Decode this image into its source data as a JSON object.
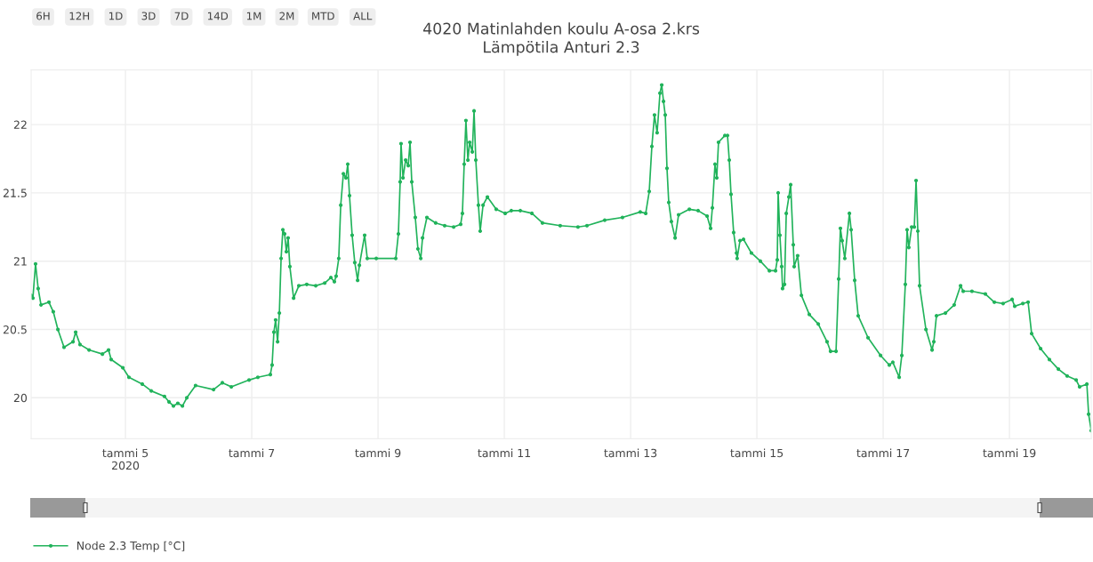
{
  "chart_data": {
    "type": "line",
    "title": "4020 Matinlahden koulu A-osa 2.krs",
    "subtitle": "Lämpötila Anturi 2.3",
    "annotations": [
      "6H",
      "12H",
      "1D",
      "3D",
      "7D",
      "14D",
      "1M",
      "2M",
      "MTD",
      "ALL"
    ],
    "x": [
      "2020-01-03T12:10",
      "2020-01-03T12:50",
      "2020-01-03T13:50",
      "2020-01-03T14:50",
      "2020-01-03T15:55",
      "2020-01-03T18:55",
      "2020-01-03T20:35",
      "2020-01-03T22:20",
      "2020-01-04T00:40",
      "2020-01-04T04:05",
      "2020-01-04T05:05",
      "2020-01-04T06:45",
      "2020-01-04T10:10",
      "2020-01-04T15:15",
      "2020-01-04T17:35",
      "2020-01-04T18:35",
      "2020-01-04T23:00",
      "2020-01-05T01:20",
      "2020-01-05T06:25",
      "2020-01-05T09:50",
      "2020-01-05T14:50",
      "2020-01-05T16:35",
      "2020-01-05T18:15",
      "2020-01-05T19:55",
      "2020-01-05T21:40",
      "2020-01-05T23:20",
      "2020-01-06T02:40",
      "2020-01-06T09:30",
      "2020-01-06T12:50",
      "2020-01-06T16:15",
      "2020-01-06T23:00",
      "2020-01-07T02:20",
      "2020-01-07T07:05",
      "2020-01-07T07:45",
      "2020-01-07T08:25",
      "2020-01-07T09:05",
      "2020-01-07T09:50",
      "2020-01-07T10:30",
      "2020-01-07T11:10",
      "2020-01-07T11:50",
      "2020-01-07T12:30",
      "2020-01-07T13:10",
      "2020-01-07T13:50",
      "2020-01-07T14:30",
      "2020-01-07T15:55",
      "2020-01-07T17:55",
      "2020-01-07T20:55",
      "2020-01-08T00:20",
      "2020-01-08T03:45",
      "2020-01-08T06:05",
      "2020-01-08T07:25",
      "2020-01-08T08:05",
      "2020-01-08T09:05",
      "2020-01-08T09:50",
      "2020-01-08T10:50",
      "2020-01-08T11:50",
      "2020-01-08T12:30",
      "2020-01-08T13:10",
      "2020-01-08T14:10",
      "2020-01-08T15:10",
      "2020-01-08T16:15",
      "2020-01-08T16:55",
      "2020-01-08T18:55",
      "2020-01-08T19:55",
      "2020-01-08T23:20",
      "2020-01-09T06:45",
      "2020-01-09T07:45",
      "2020-01-09T08:25",
      "2020-01-09T08:45",
      "2020-01-09T09:30",
      "2020-01-09T10:30",
      "2020-01-09T11:30",
      "2020-01-09T12:10",
      "2020-01-09T12:50",
      "2020-01-09T14:10",
      "2020-01-09T15:10",
      "2020-01-09T16:15",
      "2020-01-09T16:55",
      "2020-01-09T18:35",
      "2020-01-09T21:55",
      "2020-01-10T01:20",
      "2020-01-10T04:45",
      "2020-01-10T07:25",
      "2020-01-10T08:05",
      "2020-01-10T08:45",
      "2020-01-10T09:25",
      "2020-01-10T10:10",
      "2020-01-10T10:50",
      "2020-01-10T11:50",
      "2020-01-10T12:30",
      "2020-01-10T13:10",
      "2020-01-10T14:10",
      "2020-01-10T14:50",
      "2020-01-10T15:55",
      "2020-01-10T17:35",
      "2020-01-10T20:55",
      "2020-01-11T00:20",
      "2020-01-11T02:40",
      "2020-01-11T06:05",
      "2020-01-11T10:30",
      "2020-01-11T14:30",
      "2020-01-11T21:15",
      "2020-01-12T04:00",
      "2020-01-12T07:25",
      "2020-01-12T14:10",
      "2020-01-12T20:55",
      "2020-01-13T03:40",
      "2020-01-13T05:45",
      "2020-01-13T07:05",
      "2020-01-13T08:05",
      "2020-01-13T09:05",
      "2020-01-13T10:05",
      "2020-01-13T11:10",
      "2020-01-13T11:50",
      "2020-01-13T12:30",
      "2020-01-13T13:10",
      "2020-01-13T13:50",
      "2020-01-13T14:30",
      "2020-01-13T15:30",
      "2020-01-13T16:55",
      "2020-01-13T18:15",
      "2020-01-13T22:20",
      "2020-01-14T01:40",
      "2020-01-14T05:05",
      "2020-01-14T06:25",
      "2020-01-14T07:05",
      "2020-01-14T08:05",
      "2020-01-14T08:45",
      "2020-01-14T09:25",
      "2020-01-14T11:50",
      "2020-01-14T12:50",
      "2020-01-14T13:30",
      "2020-01-14T14:10",
      "2020-01-14T15:10",
      "2020-01-14T16:15",
      "2020-01-14T16:30",
      "2020-01-14T17:35",
      "2020-01-14T18:55",
      "2020-01-14T21:55",
      "2020-01-15T01:20",
      "2020-01-15T04:45",
      "2020-01-15T07:05",
      "2020-01-15T07:45",
      "2020-01-15T08:05",
      "2020-01-15T08:45",
      "2020-01-15T09:25",
      "2020-01-15T09:45",
      "2020-01-15T10:30",
      "2020-01-15T11:10",
      "2020-01-15T12:10",
      "2020-01-15T12:50",
      "2020-01-15T13:50",
      "2020-01-15T14:10",
      "2020-01-15T15:30",
      "2020-01-15T16:55",
      "2020-01-15T19:55",
      "2020-01-15T23:20",
      "2020-01-16T02:40",
      "2020-01-16T04:00",
      "2020-01-16T06:05",
      "2020-01-16T07:05",
      "2020-01-16T07:45",
      "2020-01-16T08:25",
      "2020-01-16T09:25",
      "2020-01-16T11:10",
      "2020-01-16T11:50",
      "2020-01-16T13:10",
      "2020-01-16T14:30",
      "2020-01-16T18:15",
      "2020-01-16T23:00",
      "2020-01-17T02:20",
      "2020-01-17T03:40",
      "2020-01-17T06:05",
      "2020-01-17T07:05",
      "2020-01-17T08:25",
      "2020-01-17T09:05",
      "2020-01-17T09:45",
      "2020-01-17T10:50",
      "2020-01-17T11:50",
      "2020-01-17T12:30",
      "2020-01-17T13:10",
      "2020-01-17T13:50",
      "2020-01-17T16:15",
      "2020-01-17T18:35",
      "2020-01-17T19:15",
      "2020-01-17T20:15",
      "2020-01-17T23:40",
      "2020-01-18T03:00",
      "2020-01-18T05:25",
      "2020-01-18T06:25",
      "2020-01-18T09:45",
      "2020-01-18T14:50",
      "2020-01-18T18:15",
      "2020-01-18T21:35",
      "2020-01-19T01:00",
      "2020-01-19T02:00",
      "2020-01-19T05:05",
      "2020-01-19T07:05",
      "2020-01-19T08:25",
      "2020-01-19T11:50",
      "2020-01-19T15:10",
      "2020-01-19T18:35",
      "2020-01-19T21:55",
      "2020-01-20T01:20",
      "2020-01-20T02:40",
      "2020-01-20T05:25",
      "2020-01-20T06:05",
      "2020-01-20T07:05"
    ],
    "series": [
      {
        "name": "Node 2.3 Temp [°C]",
        "color": "#21b35b",
        "values": [
          20.75,
          20.73,
          20.98,
          20.8,
          20.68,
          20.7,
          20.63,
          20.5,
          20.37,
          20.41,
          20.48,
          20.39,
          20.35,
          20.32,
          20.35,
          20.28,
          20.22,
          20.15,
          20.1,
          20.05,
          20.01,
          19.97,
          19.94,
          19.96,
          19.94,
          20.0,
          20.09,
          20.06,
          20.11,
          20.08,
          20.13,
          20.15,
          20.17,
          20.24,
          20.48,
          20.57,
          20.41,
          20.62,
          21.02,
          21.23,
          21.2,
          21.07,
          21.17,
          20.96,
          20.73,
          20.82,
          20.83,
          20.82,
          20.84,
          20.88,
          20.85,
          20.89,
          21.02,
          21.41,
          21.64,
          21.61,
          21.71,
          21.48,
          21.19,
          20.99,
          20.86,
          20.97,
          21.19,
          21.02,
          21.02,
          21.02,
          21.2,
          21.58,
          21.86,
          21.61,
          21.74,
          21.7,
          21.87,
          21.58,
          21.32,
          21.09,
          21.02,
          21.17,
          21.32,
          21.28,
          21.26,
          21.25,
          21.27,
          21.35,
          21.71,
          22.03,
          21.74,
          21.87,
          21.8,
          22.1,
          21.74,
          21.41,
          21.22,
          21.41,
          21.47,
          21.38,
          21.35,
          21.37,
          21.37,
          21.35,
          21.28,
          21.26,
          21.25,
          21.26,
          21.3,
          21.32,
          21.36,
          21.35,
          21.51,
          21.84,
          22.07,
          21.94,
          22.23,
          22.29,
          22.17,
          22.07,
          21.68,
          21.43,
          21.29,
          21.17,
          21.34,
          21.38,
          21.37,
          21.33,
          21.24,
          21.39,
          21.71,
          21.61,
          21.87,
          21.92,
          21.92,
          21.74,
          21.49,
          21.21,
          21.06,
          21.02,
          21.15,
          21.16,
          21.06,
          21.0,
          20.93,
          20.93,
          21.01,
          21.5,
          21.19,
          20.96,
          20.8,
          20.83,
          21.35,
          21.47,
          21.56,
          21.12,
          20.96,
          21.04,
          20.75,
          20.61,
          20.54,
          20.41,
          20.34,
          20.34,
          20.87,
          21.24,
          21.15,
          21.02,
          21.35,
          21.23,
          20.86,
          20.6,
          20.44,
          20.31,
          20.24,
          20.26,
          20.15,
          20.31,
          20.83,
          21.23,
          21.1,
          21.25,
          21.25,
          21.59,
          21.22,
          20.82,
          20.5,
          20.35,
          20.41,
          20.6,
          20.62,
          20.68,
          20.82,
          20.78,
          20.78,
          20.76,
          20.7,
          20.69,
          20.72,
          20.67,
          20.69,
          20.7,
          20.47,
          20.36,
          20.28,
          20.21,
          20.16,
          20.13,
          20.08,
          20.1,
          19.88,
          19.76
        ]
      }
    ],
    "xlim": [
      "2020-01-03T12:10",
      "2020-01-20T07:05"
    ],
    "xticks": [
      {
        "value": "2020-01-05",
        "label": "tammi 5\n2020"
      },
      {
        "value": "2020-01-07",
        "label": "tammi 7"
      },
      {
        "value": "2020-01-09",
        "label": "tammi 9"
      },
      {
        "value": "2020-01-11",
        "label": "tammi 11"
      },
      {
        "value": "2020-01-13",
        "label": "tammi 13"
      },
      {
        "value": "2020-01-15",
        "label": "tammi 15"
      },
      {
        "value": "2020-01-17",
        "label": "tammi 17"
      },
      {
        "value": "2020-01-19",
        "label": "tammi 19"
      }
    ],
    "ylim": [
      19.7,
      22.4
    ],
    "yticks": [
      20,
      20.5,
      21,
      21.5,
      22
    ],
    "grid": true,
    "legend": "bottom left",
    "marker": "circle",
    "line_style": "solid"
  }
}
